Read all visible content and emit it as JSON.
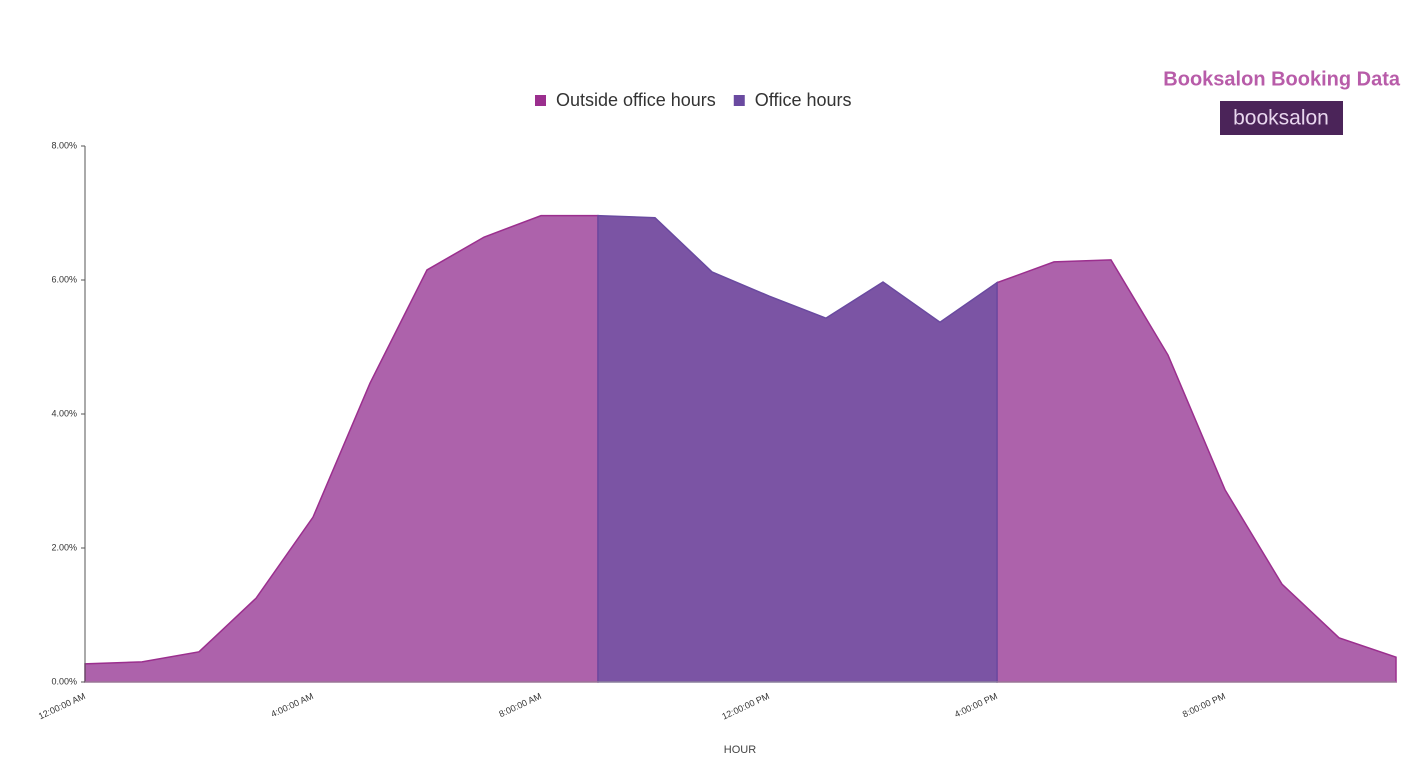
{
  "header": {
    "title": "Booksalon Booking Data",
    "logo": "booksalon"
  },
  "chart_data": {
    "type": "area",
    "xlabel": "HOUR",
    "categories": [
      "12:00:00 AM",
      null,
      null,
      null,
      "4:00:00 AM",
      null,
      null,
      null,
      "8:00:00 AM",
      null,
      null,
      null,
      "12:00:00 PM",
      null,
      null,
      null,
      "4:00:00 PM",
      null,
      null,
      null,
      "8:00:00 PM",
      null,
      null,
      null
    ],
    "series": [
      {
        "name": "Outside office hours",
        "color": "#ad62ab",
        "legend_color": "#9b2f8e",
        "values": [
          0.27,
          0.3,
          0.45,
          1.25,
          2.46,
          4.46,
          6.15,
          6.64,
          6.96,
          6.96,
          null,
          null,
          null,
          null,
          null,
          null,
          5.96,
          6.27,
          6.3,
          4.88,
          2.87,
          1.46,
          0.66,
          0.37
        ]
      },
      {
        "name": "Office hours",
        "color": "#7b54a4",
        "legend_color": "#6a4aa0",
        "values": [
          null,
          null,
          null,
          null,
          null,
          null,
          null,
          null,
          null,
          6.96,
          6.93,
          6.12,
          5.76,
          5.43,
          5.97,
          5.37,
          5.96,
          null,
          null,
          null,
          null,
          null,
          null,
          null
        ]
      }
    ],
    "ylim": [
      0,
      8
    ],
    "yticks": [
      {
        "value": 0,
        "label": "0.00%"
      },
      {
        "value": 2,
        "label": "2.00%"
      },
      {
        "value": 4,
        "label": "4.00%"
      },
      {
        "value": 6,
        "label": "6.00%"
      },
      {
        "value": 8,
        "label": "8.00%"
      }
    ]
  }
}
